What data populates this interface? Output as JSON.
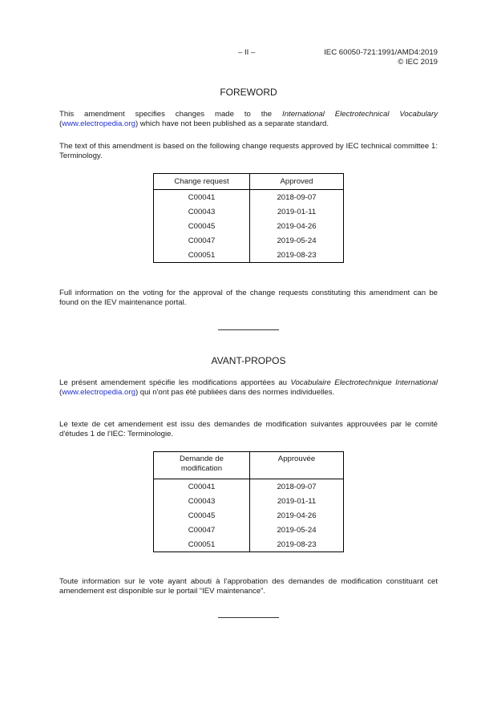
{
  "header": {
    "page_number": "– II –",
    "doc_id": "IEC 60050-721:1991/AMD4:2019",
    "copyright": "© IEC 2019"
  },
  "foreword": {
    "title": "FOREWORD",
    "p1_a": "This amendment specifies changes made to the ",
    "p1_italic": "International Electrotechnical Vocabulary",
    "p1_b": " (",
    "p1_link": "www.electropedia.org",
    "p1_c": ") which have not been published as a separate standard.",
    "p2": "The text of this amendment is based on the following change requests approved by IEC technical committee 1: Terminology.",
    "table": {
      "headers": [
        "Change request",
        "Approved"
      ],
      "rows": [
        [
          "C00041",
          "2018-09-07"
        ],
        [
          "C00043",
          "2019-01-11"
        ],
        [
          "C00045",
          "2019-04-26"
        ],
        [
          "C00047",
          "2019-05-24"
        ],
        [
          "C00051",
          "2019-08-23"
        ]
      ]
    },
    "p3": "Full information on the voting for the approval of the change requests constituting this amendment can be found on the IEV maintenance portal."
  },
  "avant_propos": {
    "title": "AVANT-PROPOS",
    "p1_a": "Le présent amendement spécifie les modifications apportées au ",
    "p1_italic": "Vocabulaire Electrotechnique International",
    "p1_b": " (",
    "p1_link": "www.electropedia.org",
    "p1_c": ") qui n'ont pas été publiées dans des normes individuelles.",
    "p2": "Le texte de cet amendement est issu des demandes de modification suivantes approuvées par le comité d'études 1 de l'IEC: Terminologie.",
    "table": {
      "headers": [
        "Demande de modification",
        "Approuvée"
      ],
      "rows": [
        [
          "C00041",
          "2018-09-07"
        ],
        [
          "C00043",
          "2019-01-11"
        ],
        [
          "C00045",
          "2019-04-26"
        ],
        [
          "C00047",
          "2019-05-24"
        ],
        [
          "C00051",
          "2019-08-23"
        ]
      ]
    },
    "p3": "Toute information sur le vote ayant abouti à l'approbation des demandes de modification constituant cet amendement est disponible sur le portail “IEV maintenance”."
  },
  "colors": {
    "link": "#2233cc"
  }
}
